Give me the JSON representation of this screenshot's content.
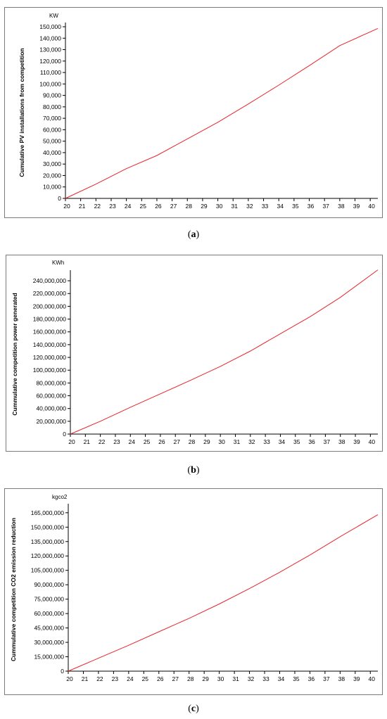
{
  "chart_data": [
    {
      "type": "line",
      "caption": "a",
      "unit": "KW",
      "ylabel": "Cumulative PV installations from competition",
      "x_ticks": [
        "20",
        "21",
        "22",
        "23",
        "24",
        "25",
        "26",
        "27",
        "28",
        "29",
        "30",
        "31",
        "32",
        "33",
        "34",
        "35",
        "36",
        "37",
        "38",
        "39",
        "40"
      ],
      "y_ticks": [
        "0",
        "10,000",
        "20,000",
        "30,000",
        "40,000",
        "50,000",
        "60,000",
        "70,000",
        "80,000",
        "90,000",
        "100,000",
        "110,000",
        "120,000",
        "130,000",
        "140,000",
        "150,000"
      ],
      "ylim": [
        0,
        150000
      ],
      "xlim": [
        20,
        40.5
      ],
      "series": [
        {
          "color": "#e8242c",
          "x": [
            20,
            22,
            24,
            26,
            28,
            30,
            32,
            34,
            36,
            38,
            40.5
          ],
          "y": [
            0,
            12500,
            26000,
            37500,
            52000,
            66500,
            82500,
            99000,
            116000,
            133500,
            148500
          ]
        }
      ]
    },
    {
      "type": "line",
      "caption": "b",
      "unit": "KWh",
      "ylabel": "Cummulative competition power generated",
      "x_ticks": [
        "20",
        "21",
        "22",
        "23",
        "24",
        "25",
        "26",
        "27",
        "28",
        "29",
        "30",
        "31",
        "32",
        "33",
        "34",
        "35",
        "36",
        "37",
        "38",
        "39",
        "40"
      ],
      "y_ticks": [
        "0",
        "20,000,000",
        "40,000,000",
        "60,000,000",
        "80,000,000",
        "100,000,000",
        "120,000,000",
        "140,000,000",
        "160,000,000",
        "180,000,000",
        "200,000,000",
        "220,000,000",
        "240,000,000"
      ],
      "ylim": [
        0,
        250000000
      ],
      "xlim": [
        20,
        40.5
      ],
      "series": [
        {
          "color": "#e8242c",
          "x": [
            20,
            22,
            24,
            26,
            28,
            30,
            32,
            34,
            36,
            38,
            40.5
          ],
          "y": [
            0,
            20000000,
            42000000,
            63000000,
            84000000,
            106000000,
            130000000,
            157000000,
            184000000,
            214000000,
            257000000
          ]
        }
      ]
    },
    {
      "type": "line",
      "caption": "c",
      "unit": "kgco2",
      "ylabel": "Cummulative competition CO2 emission reduction",
      "x_ticks": [
        "20",
        "21",
        "22",
        "23",
        "24",
        "25",
        "26",
        "27",
        "28",
        "29",
        "30",
        "31",
        "32",
        "33",
        "34",
        "35",
        "36",
        "37",
        "38",
        "39",
        "40"
      ],
      "y_ticks": [
        "0",
        "15,000,000",
        "30,000,000",
        "45,000,000",
        "60,000,000",
        "75,000,000",
        "90,000,000",
        "105,000,000",
        "120,000,000",
        "135,000,000",
        "150,000,000",
        "165,000,000"
      ],
      "ylim": [
        0,
        170000000
      ],
      "xlim": [
        20,
        40.5
      ],
      "series": [
        {
          "color": "#e8242c",
          "x": [
            20,
            22,
            24,
            26,
            28,
            30,
            32,
            34,
            36,
            38,
            40.5
          ],
          "y": [
            0,
            13500000,
            27000000,
            41000000,
            55000000,
            70000000,
            86000000,
            103000000,
            121000000,
            140000000,
            163000000
          ]
        }
      ]
    }
  ]
}
